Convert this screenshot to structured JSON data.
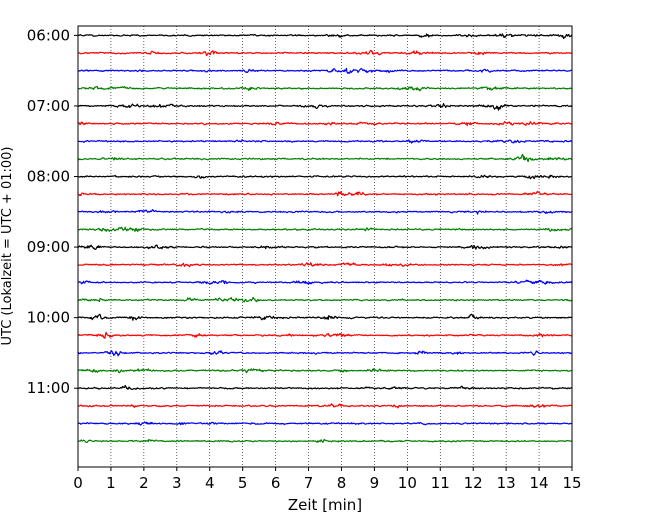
{
  "chart_data": {
    "type": "line",
    "title": "",
    "xlabel": "Zeit  [min]",
    "ylabel": "UTC (Lokalzeit = UTC + 01:00)",
    "xlim": [
      0,
      15
    ],
    "x_ticks": [
      0,
      1,
      2,
      3,
      4,
      5,
      6,
      7,
      8,
      9,
      10,
      11,
      12,
      13,
      14,
      15
    ],
    "y_time_range": [
      "05:52",
      "12:07"
    ],
    "y_ticks": [
      "06:00",
      "07:00",
      "08:00",
      "09:00",
      "10:00",
      "11:00"
    ],
    "grid": "vertical dotted at each minute",
    "legend": "none",
    "trace_interval_minutes": 15,
    "trace_color_cycle": [
      "#000000",
      "#ff0000",
      "#0000ff",
      "#008000"
    ],
    "traces": [
      {
        "start": "06:00",
        "color": "#000000"
      },
      {
        "start": "06:15",
        "color": "#ff0000"
      },
      {
        "start": "06:30",
        "color": "#0000ff"
      },
      {
        "start": "06:45",
        "color": "#008000"
      },
      {
        "start": "07:00",
        "color": "#000000"
      },
      {
        "start": "07:15",
        "color": "#ff0000"
      },
      {
        "start": "07:30",
        "color": "#0000ff"
      },
      {
        "start": "07:45",
        "color": "#008000"
      },
      {
        "start": "08:00",
        "color": "#000000"
      },
      {
        "start": "08:15",
        "color": "#ff0000"
      },
      {
        "start": "08:30",
        "color": "#0000ff"
      },
      {
        "start": "08:45",
        "color": "#008000"
      },
      {
        "start": "09:00",
        "color": "#000000"
      },
      {
        "start": "09:15",
        "color": "#ff0000"
      },
      {
        "start": "09:30",
        "color": "#0000ff"
      },
      {
        "start": "09:45",
        "color": "#008000"
      },
      {
        "start": "10:00",
        "color": "#000000"
      },
      {
        "start": "10:15",
        "color": "#ff0000"
      },
      {
        "start": "10:30",
        "color": "#0000ff"
      },
      {
        "start": "10:45",
        "color": "#008000"
      },
      {
        "start": "11:00",
        "color": "#000000"
      },
      {
        "start": "11:15",
        "color": "#ff0000"
      },
      {
        "start": "11:30",
        "color": "#0000ff"
      },
      {
        "start": "11:45",
        "color": "#008000"
      }
    ]
  }
}
